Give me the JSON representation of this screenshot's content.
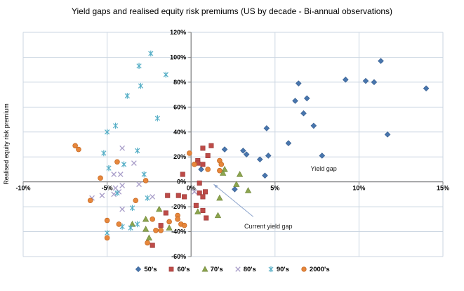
{
  "chart_data": {
    "type": "scatter",
    "title": "Yield gaps and realised equity risk premiums (US by decade - Bi-annual observations)",
    "xlabel": "",
    "ylabel": "Realised equity risk premium",
    "units": "percent",
    "xlim": [
      -10,
      15
    ],
    "ylim": [
      -60,
      120
    ],
    "x_ticks": [
      -10,
      -5,
      0,
      5,
      10,
      15
    ],
    "x_tick_labels": [
      "-10%",
      "-5%",
      "0%",
      "5%",
      "10%",
      "15%"
    ],
    "y_ticks": [
      120,
      100,
      80,
      60,
      40,
      20,
      0,
      -20,
      -40,
      -60
    ],
    "y_tick_labels": [
      "120%",
      "100%",
      "80%",
      "60%",
      "40%",
      "20%",
      "0%",
      "-20%",
      "-40%",
      "-60%"
    ],
    "grid": true,
    "grid_color": "#CBD6E2",
    "axis_color": "#808080",
    "legend_position": "bottom",
    "series": [
      {
        "name": "50's",
        "marker": "diamond",
        "color": "#4876AE",
        "stroke": "#3A6091",
        "points": [
          [
            0.6,
            10
          ],
          [
            2.0,
            26
          ],
          [
            3.1,
            25
          ],
          [
            3.3,
            22
          ],
          [
            4.1,
            18
          ],
          [
            4.6,
            21
          ],
          [
            4.4,
            5
          ],
          [
            2.6,
            -6
          ],
          [
            4.5,
            43
          ],
          [
            5.8,
            31
          ],
          [
            6.2,
            65
          ],
          [
            6.9,
            67
          ],
          [
            6.7,
            55
          ],
          [
            6.4,
            79
          ],
          [
            7.3,
            45
          ],
          [
            7.8,
            21
          ],
          [
            9.2,
            82
          ],
          [
            10.4,
            81
          ],
          [
            10.9,
            80
          ],
          [
            11.3,
            97
          ],
          [
            11.7,
            38
          ],
          [
            14.0,
            75
          ]
        ]
      },
      {
        "name": "60's",
        "marker": "square",
        "color": "#BE4B48",
        "stroke": "#9C3D3A",
        "points": [
          [
            0.7,
            27
          ],
          [
            1.2,
            29
          ],
          [
            1.0,
            21
          ],
          [
            0.4,
            17
          ],
          [
            0.4,
            15
          ],
          [
            0.7,
            14
          ],
          [
            -0.5,
            6
          ],
          [
            0.5,
            -1
          ],
          [
            -1.4,
            -11
          ],
          [
            -0.75,
            -11
          ],
          [
            -0.4,
            -12
          ],
          [
            0.5,
            -9
          ],
          [
            0.7,
            -12
          ],
          [
            0.85,
            -8
          ],
          [
            0.3,
            -19
          ],
          [
            0.7,
            -23
          ],
          [
            -1.5,
            -25
          ],
          [
            0.9,
            -29
          ],
          [
            -1.8,
            -35
          ],
          [
            -2.3,
            -51
          ]
        ]
      },
      {
        "name": "70's",
        "marker": "triangle",
        "color": "#8CA54E",
        "stroke": "#74893E",
        "points": [
          [
            2.0,
            10
          ],
          [
            1.9,
            7
          ],
          [
            2.9,
            6
          ],
          [
            2.7,
            -2
          ],
          [
            3.4,
            -7
          ],
          [
            1.7,
            -13
          ],
          [
            -1.9,
            -22
          ],
          [
            0.4,
            -24
          ],
          [
            1.6,
            -27
          ],
          [
            -2.7,
            -30
          ],
          [
            -3.5,
            -34
          ],
          [
            -2.7,
            -38
          ],
          [
            -1.3,
            -37
          ],
          [
            -2.5,
            -45
          ]
        ]
      },
      {
        "name": "80's",
        "marker": "x",
        "color": "#A79CC8",
        "stroke": "#A79CC8",
        "points": [
          [
            -4.1,
            27
          ],
          [
            -3.4,
            15
          ],
          [
            -4.6,
            6
          ],
          [
            -4.2,
            6
          ],
          [
            -3.1,
            -2
          ],
          [
            -4.5,
            -5
          ],
          [
            -4.1,
            -3
          ],
          [
            -4.3,
            -8
          ],
          [
            -5.9,
            -13
          ],
          [
            -5.3,
            -11
          ],
          [
            -4.6,
            -10
          ],
          [
            -4.1,
            -22
          ],
          [
            -2.3,
            -12
          ],
          [
            0.2,
            -8
          ]
        ]
      },
      {
        "name": "90's",
        "marker": "star",
        "color": "#55AEC6",
        "stroke": "#55AEC6",
        "points": [
          [
            -2.4,
            103
          ],
          [
            -3.1,
            93
          ],
          [
            -1.5,
            86
          ],
          [
            -3.0,
            77
          ],
          [
            -3.8,
            69
          ],
          [
            -2.0,
            51
          ],
          [
            -4.5,
            45
          ],
          [
            -5.0,
            40
          ],
          [
            -5.2,
            23
          ],
          [
            -3.2,
            25
          ],
          [
            -4.0,
            14
          ],
          [
            -4.9,
            11
          ],
          [
            -2.8,
            6
          ],
          [
            -4.4,
            -9
          ],
          [
            -2.6,
            -13
          ],
          [
            -3.5,
            -21
          ],
          [
            -3.2,
            -34
          ],
          [
            -4.1,
            -36
          ],
          [
            -3.6,
            -37
          ],
          [
            -5.0,
            -41
          ]
        ]
      },
      {
        "name": "2000's",
        "marker": "circle",
        "color": "#E7873C",
        "stroke": "#C66A25",
        "points": [
          [
            -6.9,
            29
          ],
          [
            -6.7,
            26
          ],
          [
            -4.4,
            16
          ],
          [
            -5.4,
            3
          ],
          [
            -2.7,
            1
          ],
          [
            -0.1,
            23
          ],
          [
            0.2,
            14
          ],
          [
            1.0,
            10
          ],
          [
            1.7,
            9
          ],
          [
            1.7,
            17
          ],
          [
            1.8,
            14
          ],
          [
            -6.0,
            -15
          ],
          [
            -3.3,
            -15
          ],
          [
            -0.8,
            -27
          ],
          [
            -0.8,
            -30
          ],
          [
            -1.3,
            -32
          ],
          [
            -0.6,
            -34
          ],
          [
            -0.4,
            -35
          ],
          [
            -2.1,
            -39
          ],
          [
            -1.8,
            -39
          ],
          [
            -2.3,
            -30
          ],
          [
            -5.0,
            -31
          ],
          [
            -4.3,
            -34
          ],
          [
            -5.0,
            -45
          ],
          [
            -2.6,
            -49
          ]
        ]
      }
    ],
    "annotations": [
      {
        "text": "Yield gap",
        "x": 7.9,
        "y": 10.5
      },
      {
        "text": "Current yield gap",
        "x": 4.6,
        "y": -36,
        "arrow": {
          "from": [
            3.7,
            -28
          ],
          "to": [
            1.35,
            -2
          ]
        },
        "arrow_color": "#8CA3CC"
      }
    ]
  }
}
